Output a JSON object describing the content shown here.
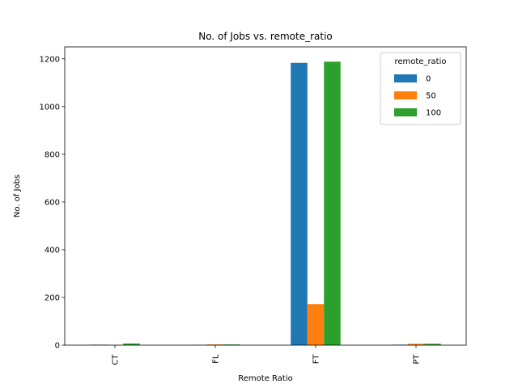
{
  "chart_data": {
    "type": "bar",
    "title": "No. of Jobs vs. remote_ratio",
    "xlabel": "Remote Ratio",
    "ylabel": "No. of Jobs",
    "categories": [
      "CT",
      "FL",
      "FT",
      "PT"
    ],
    "series": [
      {
        "name": "0",
        "color": "#1f77b4",
        "values": [
          2,
          1,
          1183,
          2
        ]
      },
      {
        "name": "50",
        "color": "#ff7f0e",
        "values": [
          1,
          3,
          172,
          6
        ]
      },
      {
        "name": "100",
        "color": "#2ca02c",
        "values": [
          7,
          3,
          1188,
          6
        ]
      }
    ],
    "ylim": [
      0,
      1250
    ],
    "yticks": [
      0,
      200,
      400,
      600,
      800,
      1000,
      1200
    ],
    "grid": false,
    "legend": {
      "title": "remote_ratio",
      "placement": "top-right"
    }
  }
}
